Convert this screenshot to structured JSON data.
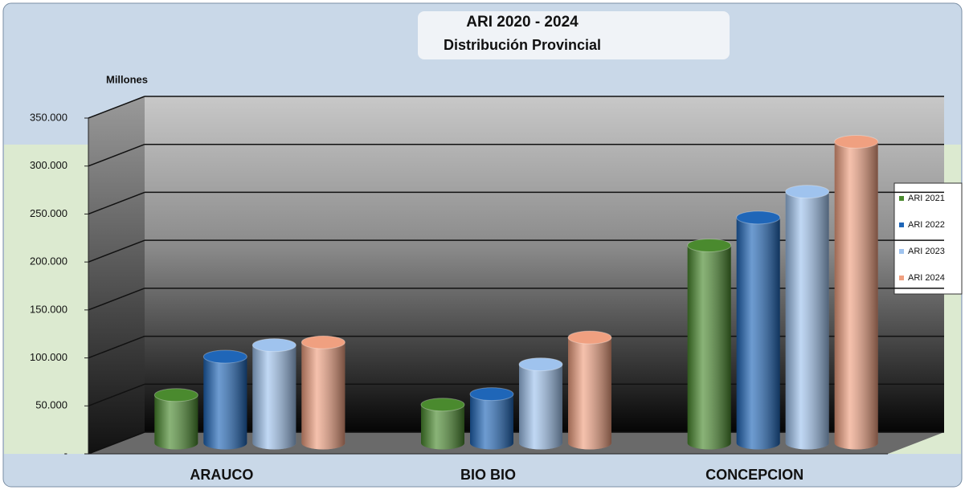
{
  "chart_data": {
    "type": "bar3d",
    "title": "ARI 2020 - 2024",
    "subtitle": "Distribución Provincial",
    "y_label": "Millones",
    "categories": [
      "ARAUCO",
      "BIO BIO",
      "CONCEPCION"
    ],
    "series": [
      {
        "name": "ARI 2021",
        "color": "#4a8a2e",
        "values": [
          50000,
          40000,
          206000
        ]
      },
      {
        "name": "ARI 2022",
        "color": "#1f66b8",
        "values": [
          90000,
          51000,
          235000
        ]
      },
      {
        "name": "ARI 2023",
        "color": "#9fc3ee",
        "values": [
          102000,
          82000,
          262000
        ]
      },
      {
        "name": "ARI 2024",
        "color": "#f0a080",
        "values": [
          105000,
          110000,
          314000
        ]
      }
    ],
    "ylim": [
      0,
      350000
    ],
    "yticks": [
      {
        "value": 0,
        "label": "-"
      },
      {
        "value": 50000,
        "label": "50.000"
      },
      {
        "value": 100000,
        "label": "100.000"
      },
      {
        "value": 150000,
        "label": "150.000"
      },
      {
        "value": 200000,
        "label": "200.000"
      },
      {
        "value": 250000,
        "label": "250.000"
      },
      {
        "value": 300000,
        "label": "300.000"
      },
      {
        "value": 350000,
        "label": "350.000"
      }
    ],
    "grid": true,
    "legend": "right"
  }
}
